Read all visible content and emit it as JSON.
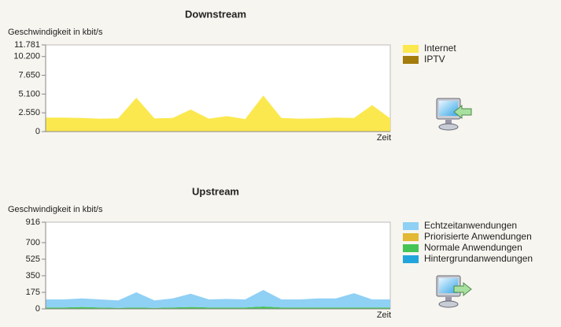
{
  "chart_data": [
    {
      "type": "area",
      "title": "Downstream",
      "y_label": "Geschwindigkeit in kbit/s",
      "x_label": "Zeit",
      "ylim": [
        0,
        11781
      ],
      "yticks": [
        0,
        {
          "value": 2550,
          "label": "2.550"
        },
        {
          "value": 5100,
          "label": "5.100"
        },
        {
          "value": 7650,
          "label": "7.650"
        },
        {
          "value": 10200,
          "label": "10.200"
        },
        {
          "value": 11781,
          "label": "11.781"
        }
      ],
      "stacked": true,
      "series": [
        {
          "name": "Internet",
          "color": "#fbe84e",
          "values": [
            1900,
            1900,
            1850,
            1750,
            1800,
            4600,
            1800,
            1850,
            3000,
            1750,
            2100,
            1700,
            4900,
            1850,
            1750,
            1800,
            1900,
            1850,
            3600,
            1800
          ]
        },
        {
          "name": "IPTV",
          "color": "#a47c0c",
          "values": [
            0,
            0,
            0,
            0,
            0,
            0,
            0,
            0,
            0,
            0,
            0,
            0,
            0,
            0,
            0,
            0,
            0,
            0,
            0,
            0
          ]
        }
      ]
    },
    {
      "type": "area",
      "title": "Upstream",
      "y_label": "Geschwindigkeit in kbit/s",
      "x_label": "Zeit",
      "ylim": [
        0,
        916
      ],
      "yticks": [
        0,
        175,
        350,
        525,
        700,
        916
      ],
      "stacked": true,
      "series": [
        {
          "name": "Echtzeitanwendungen",
          "color": "#8fd0f5",
          "values": [
            85,
            85,
            90,
            85,
            80,
            160,
            80,
            95,
            140,
            85,
            90,
            85,
            175,
            85,
            85,
            95,
            95,
            150,
            85,
            85
          ]
        },
        {
          "name": "Priorisierte Anwendungen",
          "color": "#e2b834",
          "values": [
            0,
            0,
            0,
            0,
            0,
            0,
            0,
            0,
            0,
            0,
            0,
            0,
            0,
            0,
            0,
            0,
            0,
            0,
            0,
            0
          ]
        },
        {
          "name": "Normale Anwendungen",
          "color": "#44c455",
          "values": [
            15,
            15,
            20,
            15,
            10,
            15,
            10,
            15,
            20,
            15,
            15,
            15,
            25,
            15,
            15,
            15,
            15,
            15,
            15,
            15
          ]
        },
        {
          "name": "Hintergrundanwendungen",
          "color": "#22a5dd",
          "values": [
            0,
            0,
            0,
            0,
            0,
            0,
            0,
            0,
            0,
            0,
            0,
            0,
            0,
            0,
            0,
            0,
            0,
            0,
            0,
            0
          ]
        }
      ]
    }
  ]
}
